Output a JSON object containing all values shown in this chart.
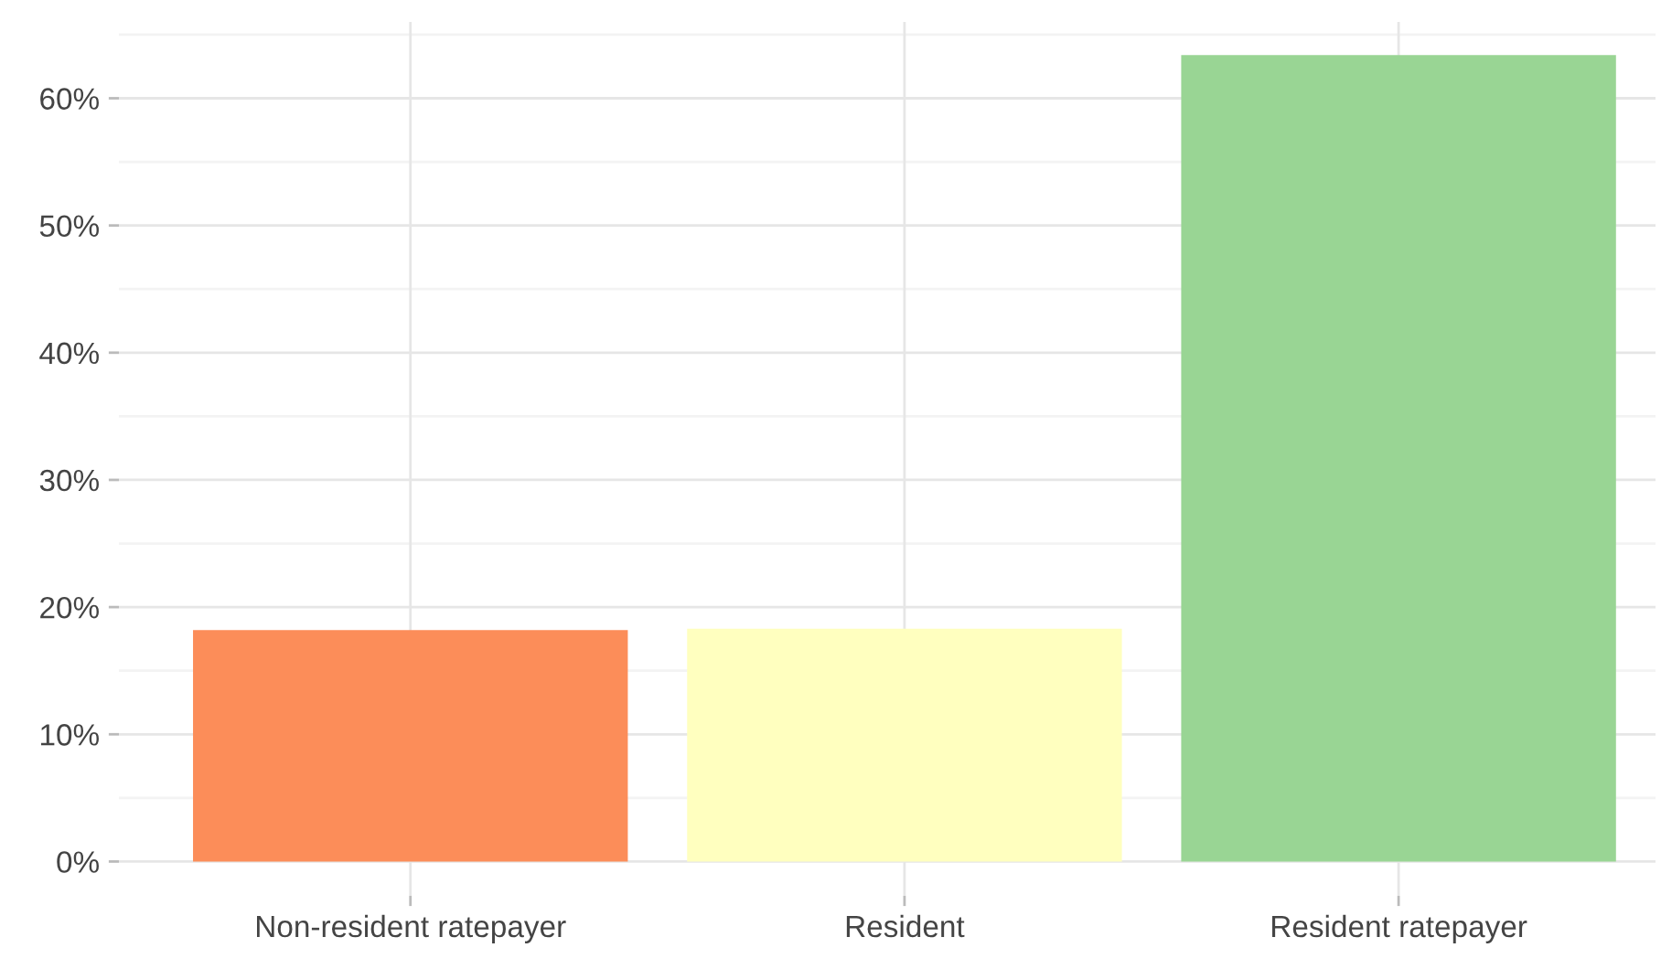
{
  "chart_data": {
    "type": "bar",
    "categories": [
      "Non-resident ratepayer",
      "Resident",
      "Resident ratepayer"
    ],
    "values": [
      18.2,
      18.3,
      63.4
    ],
    "colors": [
      "#fc8d59",
      "#ffffbf",
      "#99d594"
    ],
    "ylim": [
      -2.7,
      66
    ],
    "yticks": [
      {
        "value": 0,
        "label": "0%"
      },
      {
        "value": 10,
        "label": "10%"
      },
      {
        "value": 20,
        "label": "20%"
      },
      {
        "value": 30,
        "label": "30%"
      },
      {
        "value": 40,
        "label": "40%"
      },
      {
        "value": 50,
        "label": "50%"
      },
      {
        "value": 60,
        "label": "60%"
      }
    ],
    "grid": true
  }
}
